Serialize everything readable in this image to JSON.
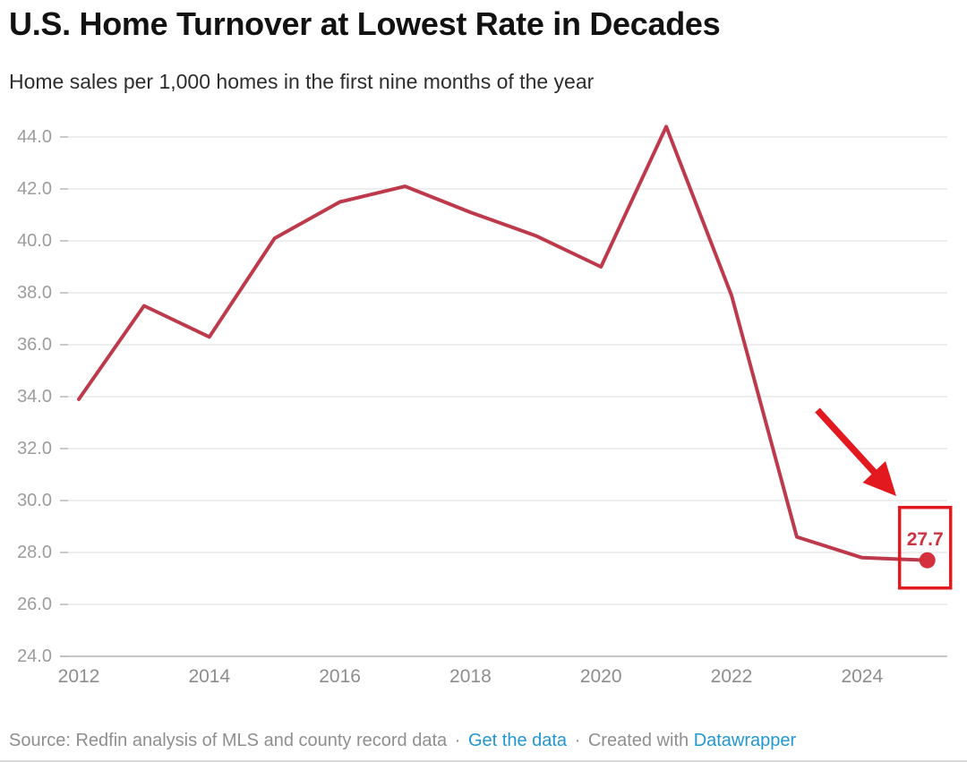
{
  "page": {
    "title": "U.S. Home Turnover at Lowest Rate in Decades",
    "subtitle": "Home sales per 1,000 homes in the first nine months of the year"
  },
  "chart_data": {
    "type": "line",
    "title": "U.S. Home Turnover at Lowest Rate in Decades",
    "subtitle": "Home sales per 1,000 homes in the first nine months of the year",
    "x": [
      2012,
      2013,
      2014,
      2015,
      2016,
      2017,
      2018,
      2019,
      2020,
      2021,
      2022,
      2023,
      2024,
      2025
    ],
    "series": [
      {
        "name": "Home sales per 1,000 homes",
        "values": [
          33.9,
          37.5,
          36.3,
          40.1,
          41.5,
          42.1,
          41.1,
          40.2,
          39.0,
          44.4,
          37.9,
          28.6,
          27.8,
          27.7
        ]
      }
    ],
    "ylim": [
      24.0,
      44.6
    ],
    "yticks": [
      "44.0",
      "42.0",
      "40.0",
      "38.0",
      "36.0",
      "34.0",
      "32.0",
      "30.0",
      "28.0",
      "26.0",
      "24.0"
    ],
    "xticks": [
      "2012",
      "2014",
      "2016",
      "2018",
      "2020",
      "2022",
      "2024"
    ],
    "grid": "horizontal",
    "legend": "none",
    "line_color": "#bd3a4c",
    "annotation": {
      "label": "27.7",
      "target_year": 2025,
      "target_value": 27.7,
      "dot_color": "#d4303e",
      "label_color": "#cd3340",
      "box_color": "#e2191f",
      "arrow_color": "#e2191f"
    }
  },
  "footer": {
    "source_text": "Source: Redfin analysis of MLS and county record data",
    "separator": "·",
    "get_data_label": "Get the data",
    "created_with_label": "Created with",
    "datawrapper_label": "Datawrapper",
    "link_color": "#2397d2"
  }
}
